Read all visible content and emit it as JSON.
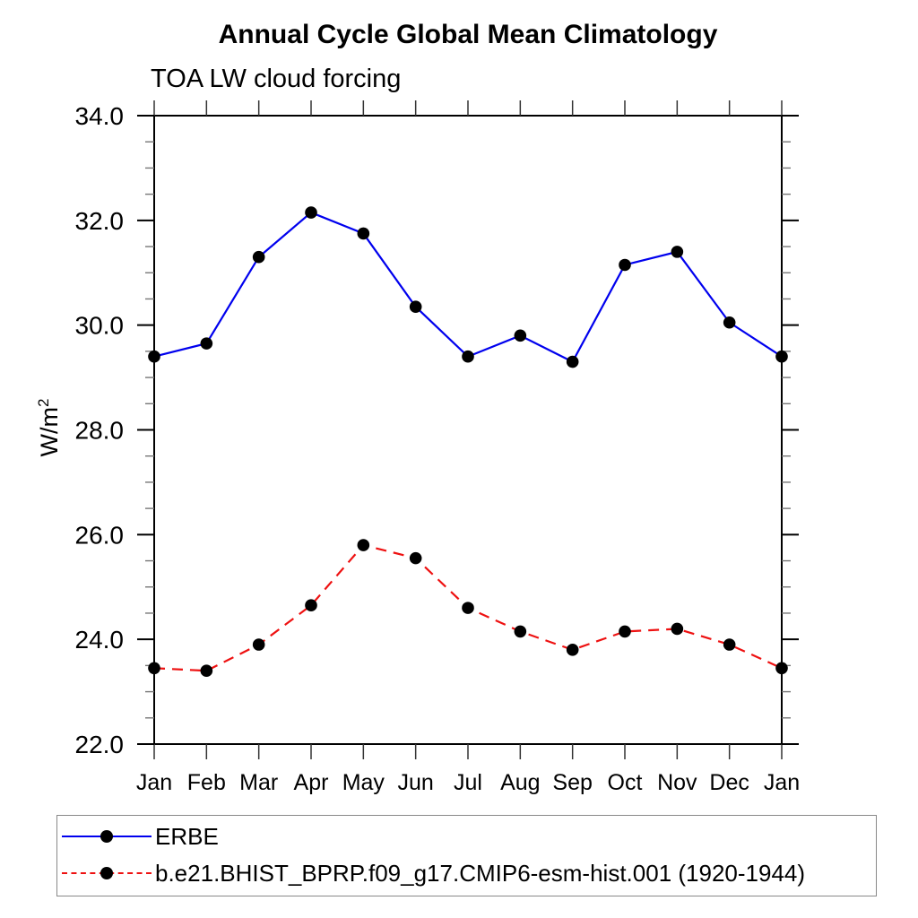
{
  "title": "Annual Cycle Global Mean Climatology",
  "subtitle": "TOA LW cloud forcing",
  "y_axis": {
    "label_base": "W/m",
    "label_exponent": "2"
  },
  "chart_data": {
    "type": "line",
    "title": "Annual Cycle Global Mean Climatology",
    "subtitle": "TOA LW cloud forcing",
    "xlabel": "",
    "ylabel": "W/m2",
    "categories": [
      "Jan",
      "Feb",
      "Mar",
      "Apr",
      "May",
      "Jun",
      "Jul",
      "Aug",
      "Sep",
      "Oct",
      "Nov",
      "Dec",
      "Jan"
    ],
    "ylim": [
      22.0,
      34.0
    ],
    "y_major_ticks": [
      "22.0",
      "24.0",
      "26.0",
      "28.0",
      "30.0",
      "32.0",
      "34.0"
    ],
    "y_minor_step": 0.5,
    "grid": false,
    "legend_position": "bottom",
    "series": [
      {
        "name": "ERBE",
        "color": "#0000ee",
        "line_style": "solid",
        "marker": "filled-circle",
        "marker_color": "#000000",
        "values": [
          29.4,
          29.65,
          31.3,
          32.15,
          31.75,
          30.35,
          29.4,
          29.8,
          29.3,
          31.15,
          31.4,
          30.05,
          29.4
        ]
      },
      {
        "name": "b.e21.BHIST_BPRP.f09_g17.CMIP6-esm-hist.001 (1920-1944)",
        "color": "#ee1111",
        "line_style": "dashed",
        "marker": "filled-circle",
        "marker_color": "#000000",
        "values": [
          23.45,
          23.4,
          23.9,
          24.65,
          25.8,
          25.55,
          24.6,
          24.15,
          23.8,
          24.15,
          24.2,
          23.9,
          23.45
        ]
      }
    ]
  }
}
